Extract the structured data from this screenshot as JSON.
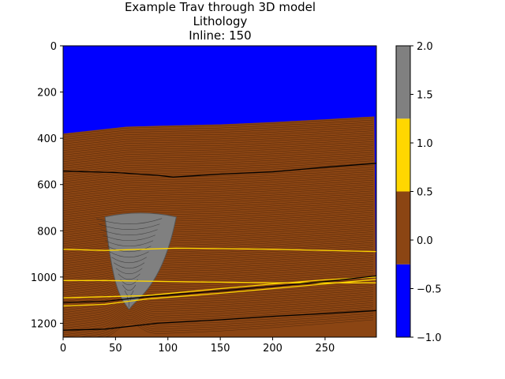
{
  "chart_data": {
    "type": "heatmap",
    "title_lines": [
      "Example Trav through 3D model",
      "Lithology",
      "Inline: 150"
    ],
    "xlim": [
      0,
      299
    ],
    "ylim": [
      1260,
      0
    ],
    "x_ticks": [
      "0",
      "50",
      "100",
      "150",
      "200",
      "250"
    ],
    "x_tick_values": [
      0,
      50,
      100,
      150,
      200,
      250
    ],
    "y_ticks": [
      "0",
      "200",
      "400",
      "600",
      "800",
      "1000",
      "1200"
    ],
    "y_tick_values": [
      0,
      200,
      400,
      600,
      800,
      1000,
      1200
    ],
    "colorbar": {
      "range": [
        -1.0,
        2.0
      ],
      "ticks": [
        "−1.0",
        "−0.5",
        "0.0",
        "0.5",
        "1.0",
        "1.5",
        "2.0"
      ],
      "tick_values": [
        -1.0,
        -0.5,
        0.0,
        0.5,
        1.0,
        1.5,
        2.0
      ],
      "classes": [
        {
          "from": -1.0,
          "to": -0.25,
          "color": "#0000ff"
        },
        {
          "from": -0.25,
          "to": 0.5,
          "color": "#8b4513"
        },
        {
          "from": 0.5,
          "to": 1.25,
          "color": "#ffd700"
        },
        {
          "from": 1.25,
          "to": 2.0,
          "color": "#808080"
        }
      ]
    },
    "seabed_depth": [
      [
        0,
        380
      ],
      [
        30,
        365
      ],
      [
        60,
        350
      ],
      [
        100,
        345
      ],
      [
        150,
        340
      ],
      [
        200,
        330
      ],
      [
        250,
        318
      ],
      [
        299,
        305
      ]
    ],
    "salt_body": {
      "top_left_x": 40,
      "top_right_x": 108,
      "top_depth": 740,
      "apex_x": 63,
      "apex_depth": 1140
    },
    "horizons": [
      {
        "color": "#000000",
        "points": [
          [
            0,
            542
          ],
          [
            50,
            548
          ],
          [
            90,
            560
          ],
          [
            105,
            568
          ],
          [
            150,
            555
          ],
          [
            200,
            545
          ],
          [
            250,
            525
          ],
          [
            299,
            508
          ]
        ]
      },
      {
        "color": "#ffd700",
        "points": [
          [
            0,
            880
          ],
          [
            40,
            885
          ],
          [
            108,
            875
          ],
          [
            200,
            880
          ],
          [
            299,
            890
          ]
        ]
      },
      {
        "color": "#ffd700",
        "points": [
          [
            0,
            1015
          ],
          [
            40,
            1015
          ],
          [
            108,
            1020
          ],
          [
            200,
            1025
          ],
          [
            299,
            1025
          ]
        ]
      },
      {
        "color": "#ffd700",
        "points": [
          [
            0,
            1090
          ],
          [
            40,
            1085
          ],
          [
            80,
            1080
          ],
          [
            150,
            1050
          ],
          [
            200,
            1030
          ],
          [
            250,
            1012
          ],
          [
            299,
            1000
          ]
        ]
      },
      {
        "color": "#000000",
        "points": [
          [
            0,
            1110
          ],
          [
            40,
            1105
          ],
          [
            80,
            1085
          ],
          [
            150,
            1060
          ],
          [
            200,
            1040
          ],
          [
            250,
            1020
          ],
          [
            299,
            995
          ]
        ]
      },
      {
        "color": "#ffd700",
        "points": [
          [
            0,
            1125
          ],
          [
            40,
            1118
          ],
          [
            80,
            1095
          ],
          [
            150,
            1070
          ],
          [
            200,
            1050
          ],
          [
            250,
            1030
          ],
          [
            299,
            1010
          ]
        ]
      },
      {
        "color": "#000000",
        "points": [
          [
            0,
            1230
          ],
          [
            40,
            1225
          ],
          [
            90,
            1200
          ],
          [
            150,
            1185
          ],
          [
            200,
            1170
          ],
          [
            250,
            1158
          ],
          [
            299,
            1145
          ]
        ]
      }
    ]
  }
}
